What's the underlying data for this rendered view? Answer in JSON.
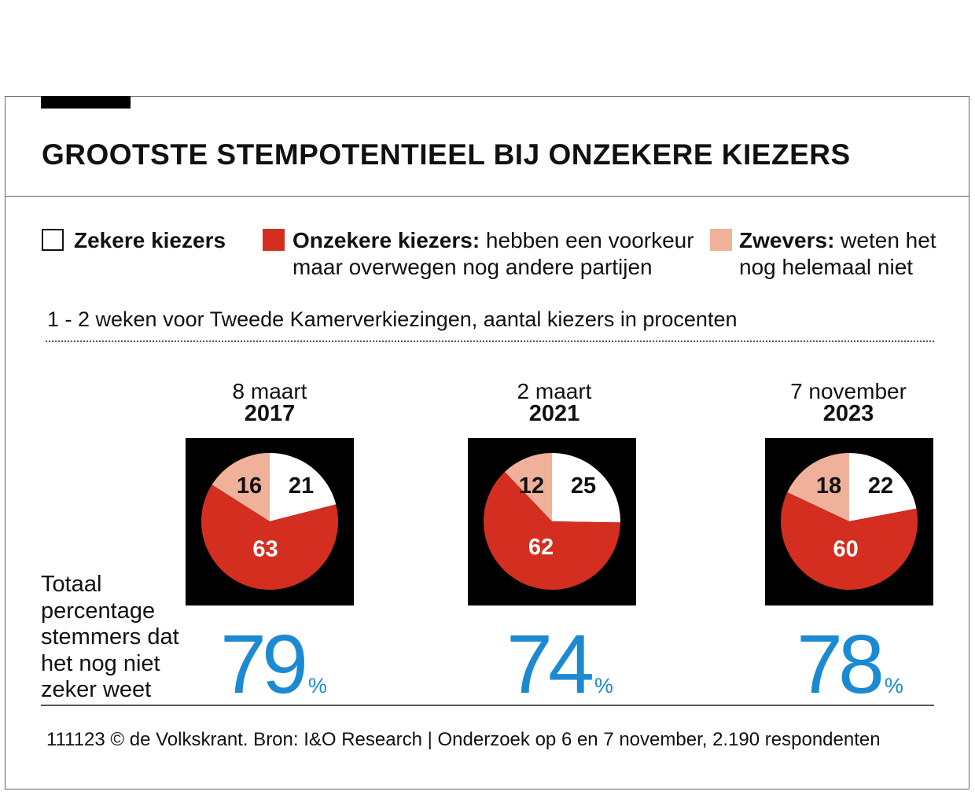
{
  "title": "GROOTSTE STEMPOTENTIEEL BIJ ONZEKERE KIEZERS",
  "legend": [
    {
      "bold": "Zekere kiezers",
      "text": "",
      "color": "#ffffff"
    },
    {
      "bold": "Onzekere kiezers:",
      "text": " hebben een voorkeur",
      "text2": "maar overwegen nog andere partijen",
      "color": "#d42e20"
    },
    {
      "bold": "Zwevers:",
      "text": " weten het",
      "text2": "nog helemaal niet",
      "color": "#efb19a"
    }
  ],
  "subtitle": "1 - 2 weken voor Tweede Kamerverkiezingen, aantal kiezers in procenten",
  "total_label": [
    "Totaal",
    "percentage",
    "stemmers dat",
    "het nog niet",
    "zeker weet"
  ],
  "chart_data": {
    "type": "pie",
    "categories": [
      "Zekere kiezers",
      "Onzekere kiezers",
      "Zwevers"
    ],
    "colors": [
      "#ffffff",
      "#d42e20",
      "#efb19a"
    ],
    "charts": [
      {
        "date": "8 maart",
        "year": "2017",
        "values": [
          21,
          63,
          16
        ],
        "total": "79",
        "unit": "%"
      },
      {
        "date": "2 maart",
        "year": "2021",
        "values": [
          25,
          62,
          12
        ],
        "total": "74",
        "unit": "%"
      },
      {
        "date": "7 november",
        "year": "2023",
        "values": [
          22,
          60,
          18
        ],
        "total": "78",
        "unit": "%"
      }
    ]
  },
  "footer": "111123 © de Volkskrant. Bron: I&O Research | Onderzoek op 6 en 7 november, 2.190 respondenten"
}
